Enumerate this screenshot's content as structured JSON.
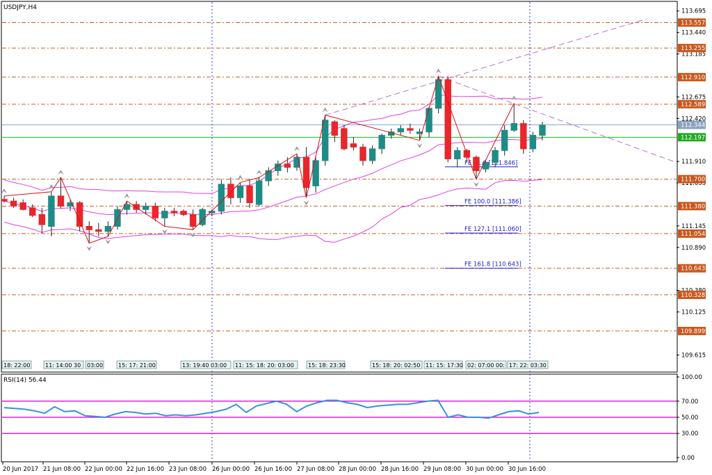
{
  "symbol_label": "USDJPY,H4",
  "rsi_label": "RSI(14) 56.44",
  "colors": {
    "bull": "#1e8c86",
    "bear": "#e8262b",
    "band": "#e040e0",
    "hline": "#c8581e",
    "green_line": "#22b222",
    "blue_line": "#7fa6d6",
    "trend": "#b070d8",
    "zigzag": "#dd1111",
    "rsi_line": "#3a8fdc",
    "rsi_level": "#dd22dd",
    "fe_line": "#1a1ad0",
    "vline": "#2a3ad8"
  },
  "price_axis": {
    "ticks": [
      "113.695",
      "113.440",
      "113.185",
      "112.675",
      "112.420",
      "111.910",
      "111.655",
      "111.145",
      "110.890",
      "110.380",
      "110.125",
      "109.615"
    ],
    "min": 109.42,
    "max": 113.8
  },
  "level_tags": [
    {
      "text": "113.557",
      "value": 113.557,
      "color": "#c8581e"
    },
    {
      "text": "113.255",
      "value": 113.255,
      "color": "#c8581e"
    },
    {
      "text": "112.910",
      "value": 112.91,
      "color": "#c8581e"
    },
    {
      "text": "112.589",
      "value": 112.589,
      "color": "#c8581e"
    },
    {
      "text": "112.344",
      "value": 112.344,
      "color": "#8aa2c0"
    },
    {
      "text": "112.197",
      "value": 112.197,
      "color": "#22aa22"
    },
    {
      "text": "111.700",
      "value": 111.7,
      "color": "#c8581e"
    },
    {
      "text": "111.380",
      "value": 111.38,
      "color": "#c8581e"
    },
    {
      "text": "111.054",
      "value": 111.054,
      "color": "#c8581e"
    },
    {
      "text": "110.643",
      "value": 110.643,
      "color": "#c8581e"
    },
    {
      "text": "110.328",
      "value": 110.328,
      "color": "#c8581e"
    },
    {
      "text": "109.899",
      "value": 109.899,
      "color": "#c8581e"
    }
  ],
  "fe_labels": [
    {
      "text": "FE 61.8 [111.846]",
      "value": 111.846
    },
    {
      "text": "FE 100.0 [111.386]",
      "value": 111.386
    },
    {
      "text": "FE 127.1 [111.060]",
      "value": 111.06
    },
    {
      "text": "FE 161.8 [110.643]",
      "value": 110.643
    }
  ],
  "rsi_axis": {
    "ticks": [
      "100.00",
      "70.00",
      "50.00",
      "30.00",
      "0.00"
    ]
  },
  "time_labels": [
    "20 Jun 2017",
    "21 Jun 08:00",
    "22 Jun 00:00",
    "22 Jun 16:00",
    "23 Jun 08:00",
    "26 Jun 00:00",
    "26 Jun 16:00",
    "27 Jun 08:00",
    "28 Jun 00:00",
    "28 Jun 16:00",
    "29 Jun 08:00",
    "30 Jun 00:00",
    "30 Jun 16:00"
  ],
  "session_labels": [
    "18: 22:00",
    "11: 14:00 30",
    "03:00",
    "15: 17: 21:00",
    "13: 19:40 03:00",
    "11: 15: 18: 20: 03:00",
    "15: 18: 23:30",
    "15: 18: 20: 02:50",
    "11: 15: 17:30",
    "02: 07:00 00:",
    "17: 22: 03:30"
  ],
  "chart_data": {
    "type": "candlestick",
    "title": "USDJPY,H4",
    "x_start": "20 Jun 2017",
    "timeframe": "H4",
    "candles": [
      {
        "o": 111.46,
        "h": 111.5,
        "l": 111.42,
        "c": 111.44
      },
      {
        "o": 111.44,
        "h": 111.48,
        "l": 111.36,
        "c": 111.38
      },
      {
        "o": 111.42,
        "h": 111.46,
        "l": 111.33,
        "c": 111.34
      },
      {
        "o": 111.36,
        "h": 111.4,
        "l": 111.25,
        "c": 111.27
      },
      {
        "o": 111.28,
        "h": 111.36,
        "l": 111.06,
        "c": 111.16
      },
      {
        "o": 111.14,
        "h": 111.55,
        "l": 111.02,
        "c": 111.5
      },
      {
        "o": 111.5,
        "h": 111.72,
        "l": 111.35,
        "c": 111.38
      },
      {
        "o": 111.38,
        "h": 111.46,
        "l": 111.32,
        "c": 111.42
      },
      {
        "o": 111.42,
        "h": 111.44,
        "l": 111.08,
        "c": 111.14
      },
      {
        "o": 111.14,
        "h": 111.2,
        "l": 110.94,
        "c": 111.1
      },
      {
        "o": 111.1,
        "h": 111.18,
        "l": 111.02,
        "c": 111.08
      },
      {
        "o": 111.08,
        "h": 111.2,
        "l": 111.02,
        "c": 111.14
      },
      {
        "o": 111.14,
        "h": 111.38,
        "l": 111.1,
        "c": 111.34
      },
      {
        "o": 111.34,
        "h": 111.44,
        "l": 111.28,
        "c": 111.4
      },
      {
        "o": 111.4,
        "h": 111.44,
        "l": 111.3,
        "c": 111.34
      },
      {
        "o": 111.34,
        "h": 111.42,
        "l": 111.28,
        "c": 111.38
      },
      {
        "o": 111.38,
        "h": 111.42,
        "l": 111.2,
        "c": 111.24
      },
      {
        "o": 111.24,
        "h": 111.36,
        "l": 111.14,
        "c": 111.32
      },
      {
        "o": 111.32,
        "h": 111.36,
        "l": 111.26,
        "c": 111.3
      },
      {
        "o": 111.32,
        "h": 111.34,
        "l": 111.26,
        "c": 111.28
      },
      {
        "o": 111.28,
        "h": 111.34,
        "l": 111.1,
        "c": 111.14
      },
      {
        "o": 111.16,
        "h": 111.36,
        "l": 111.14,
        "c": 111.34
      },
      {
        "o": 111.3,
        "h": 111.34,
        "l": 111.26,
        "c": 111.32
      },
      {
        "o": 111.32,
        "h": 111.7,
        "l": 111.28,
        "c": 111.64
      },
      {
        "o": 111.64,
        "h": 111.72,
        "l": 111.4,
        "c": 111.48
      },
      {
        "o": 111.48,
        "h": 111.66,
        "l": 111.42,
        "c": 111.62
      },
      {
        "o": 111.62,
        "h": 111.7,
        "l": 111.36,
        "c": 111.42
      },
      {
        "o": 111.4,
        "h": 111.72,
        "l": 111.38,
        "c": 111.68
      },
      {
        "o": 111.68,
        "h": 111.84,
        "l": 111.62,
        "c": 111.8
      },
      {
        "o": 111.8,
        "h": 111.92,
        "l": 111.74,
        "c": 111.88
      },
      {
        "o": 111.88,
        "h": 111.96,
        "l": 111.78,
        "c": 111.84
      },
      {
        "o": 111.84,
        "h": 112.0,
        "l": 111.8,
        "c": 111.96
      },
      {
        "o": 111.96,
        "h": 112.08,
        "l": 111.48,
        "c": 111.6
      },
      {
        "o": 111.62,
        "h": 111.96,
        "l": 111.54,
        "c": 111.92
      },
      {
        "o": 111.92,
        "h": 112.46,
        "l": 111.86,
        "c": 112.4
      },
      {
        "o": 112.38,
        "h": 112.4,
        "l": 112.14,
        "c": 112.22
      },
      {
        "o": 112.3,
        "h": 112.34,
        "l": 112.04,
        "c": 112.06
      },
      {
        "o": 112.12,
        "h": 112.2,
        "l": 112.04,
        "c": 112.08
      },
      {
        "o": 112.08,
        "h": 112.12,
        "l": 111.86,
        "c": 111.92
      },
      {
        "o": 111.92,
        "h": 112.1,
        "l": 111.88,
        "c": 112.06
      },
      {
        "o": 112.06,
        "h": 112.24,
        "l": 112.0,
        "c": 112.22
      },
      {
        "o": 112.22,
        "h": 112.3,
        "l": 112.18,
        "c": 112.26
      },
      {
        "o": 112.26,
        "h": 112.34,
        "l": 112.22,
        "c": 112.3
      },
      {
        "o": 112.3,
        "h": 112.36,
        "l": 112.24,
        "c": 112.28
      },
      {
        "o": 112.24,
        "h": 112.3,
        "l": 112.16,
        "c": 112.26
      },
      {
        "o": 112.26,
        "h": 112.56,
        "l": 112.2,
        "c": 112.54
      },
      {
        "o": 112.54,
        "h": 112.92,
        "l": 112.48,
        "c": 112.88
      },
      {
        "o": 112.88,
        "h": 112.92,
        "l": 111.9,
        "c": 111.94
      },
      {
        "o": 111.94,
        "h": 112.08,
        "l": 111.84,
        "c": 112.04
      },
      {
        "o": 112.04,
        "h": 112.06,
        "l": 111.9,
        "c": 111.96
      },
      {
        "o": 111.96,
        "h": 111.98,
        "l": 111.7,
        "c": 111.8
      },
      {
        "o": 111.82,
        "h": 111.92,
        "l": 111.78,
        "c": 111.9
      },
      {
        "o": 111.9,
        "h": 112.08,
        "l": 111.84,
        "c": 112.04
      },
      {
        "o": 112.04,
        "h": 112.34,
        "l": 111.98,
        "c": 112.28
      },
      {
        "o": 112.28,
        "h": 112.6,
        "l": 112.26,
        "c": 112.36
      },
      {
        "o": 112.36,
        "h": 112.4,
        "l": 112.0,
        "c": 112.06
      },
      {
        "o": 112.06,
        "h": 112.26,
        "l": 112.02,
        "c": 112.22
      },
      {
        "o": 112.22,
        "h": 112.38,
        "l": 112.16,
        "c": 112.34
      }
    ],
    "rsi": [
      62,
      61,
      60,
      58,
      55,
      63,
      57,
      58,
      52,
      51,
      50,
      54,
      57,
      56,
      54,
      55,
      52,
      53,
      52,
      53,
      55,
      57,
      60,
      66,
      56,
      64,
      67,
      70,
      66,
      57,
      64,
      68,
      71,
      71,
      68,
      66,
      62,
      64,
      65,
      66,
      66,
      68,
      70,
      71,
      50,
      53,
      50,
      50,
      49,
      53,
      57,
      58,
      54,
      56
    ],
    "rsi_levels": [
      70,
      50,
      30
    ],
    "fibonacci_expansion": [
      {
        "level": "61.8",
        "price": 111.846
      },
      {
        "level": "100.0",
        "price": 111.386
      },
      {
        "level": "127.1",
        "price": 111.06
      },
      {
        "level": "161.8",
        "price": 110.643
      }
    ]
  }
}
